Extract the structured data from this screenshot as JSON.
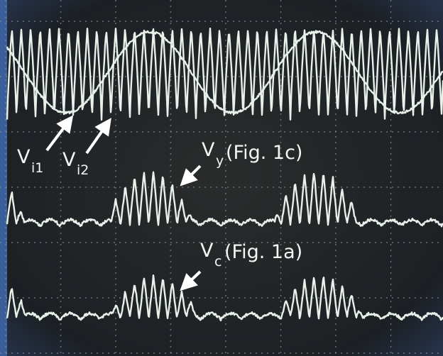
{
  "labels": [
    {
      "main": "V",
      "sub": "i1"
    },
    {
      "main": "V",
      "sub": "i2"
    },
    {
      "main": "V",
      "sub": "y",
      "note": "(Fig. 1c)"
    },
    {
      "main": "V",
      "sub": "c",
      "note": "(Fig. 1a)"
    }
  ]
}
